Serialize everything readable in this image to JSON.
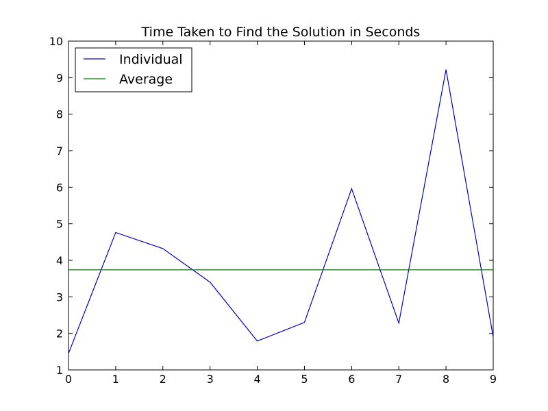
{
  "chart_data": {
    "type": "line",
    "title": "Time Taken to Find the Solution in Seconds",
    "xlabel": "",
    "ylabel": "",
    "xlim": [
      0,
      9
    ],
    "ylim": [
      1,
      10
    ],
    "x_ticks": [
      0,
      1,
      2,
      3,
      4,
      5,
      6,
      7,
      8,
      9
    ],
    "y_ticks": [
      1,
      2,
      3,
      4,
      5,
      6,
      7,
      8,
      9,
      10
    ],
    "grid": false,
    "legend": {
      "placement": "top-left"
    },
    "series": [
      {
        "name": "Individual",
        "color": "#0000bf",
        "x": [
          0,
          1,
          2,
          3,
          4,
          5,
          6,
          7,
          8,
          9
        ],
        "values": [
          1.45,
          4.76,
          4.32,
          3.4,
          1.79,
          2.3,
          5.96,
          2.28,
          9.22,
          1.9
        ]
      },
      {
        "name": "Average",
        "color": "#008000",
        "x": [
          0,
          9
        ],
        "values": [
          3.74,
          3.74
        ]
      }
    ]
  }
}
